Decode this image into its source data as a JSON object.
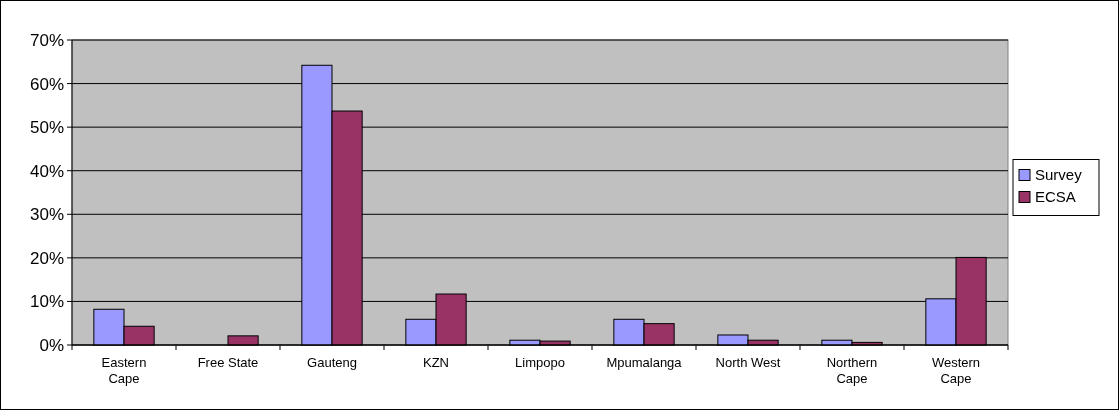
{
  "chart_data": {
    "type": "bar",
    "categories": [
      "Eastern Cape",
      "Free State",
      "Gauteng",
      "KZN",
      "Limpopo",
      "Mpumalanga",
      "North West",
      "Northern Cape",
      "Western Cape"
    ],
    "series": [
      {
        "name": "Survey",
        "color": "#9999ff",
        "values": [
          8.2,
          0,
          64.2,
          5.9,
          1.1,
          5.9,
          2.3,
          1.1,
          10.6
        ]
      },
      {
        "name": "ECSA",
        "color": "#993366",
        "values": [
          4.3,
          2.1,
          53.7,
          11.7,
          0.9,
          4.9,
          1.1,
          0.6,
          20.1
        ]
      }
    ],
    "ylim": [
      0,
      70
    ],
    "yticks": [
      {
        "value": 0,
        "label": "0%"
      },
      {
        "value": 10,
        "label": "10%"
      },
      {
        "value": 20,
        "label": "20%"
      },
      {
        "value": 30,
        "label": "30%"
      },
      {
        "value": 40,
        "label": "40%"
      },
      {
        "value": 50,
        "label": "50%"
      },
      {
        "value": 60,
        "label": "60%"
      },
      {
        "value": 70,
        "label": "70%"
      }
    ],
    "grid": "y",
    "legend": "right"
  }
}
